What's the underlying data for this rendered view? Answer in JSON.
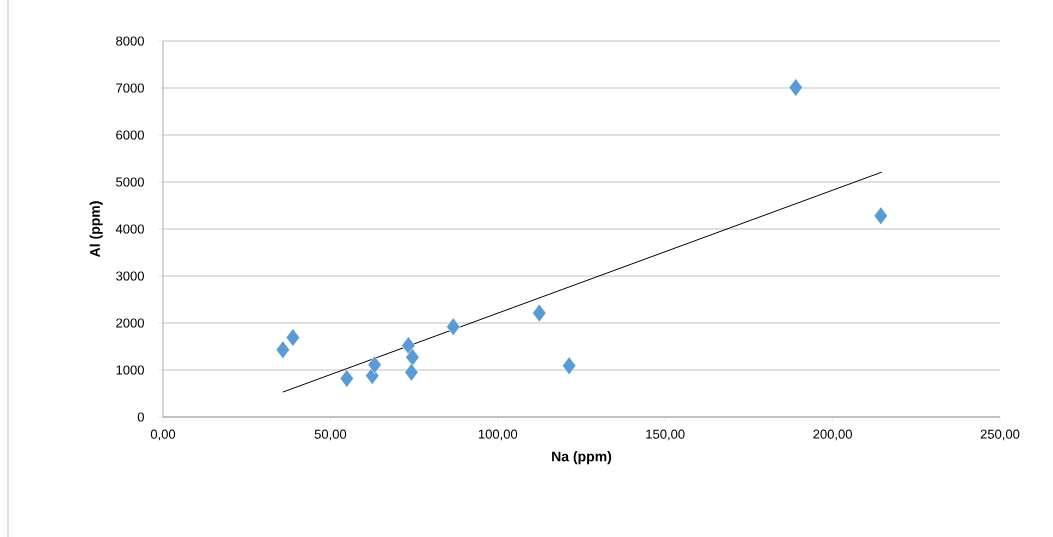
{
  "chart_data": {
    "type": "scatter",
    "xlabel": "Na (ppm)",
    "ylabel": "Al (ppm)",
    "xlim": [
      0,
      250
    ],
    "ylim": [
      0,
      8000
    ],
    "xticks": [
      {
        "value": 0,
        "label": "0,00"
      },
      {
        "value": 50,
        "label": "50,00"
      },
      {
        "value": 100,
        "label": "100,00"
      },
      {
        "value": 150,
        "label": "150,00"
      },
      {
        "value": 200,
        "label": "200,00"
      },
      {
        "value": 250,
        "label": "250,00"
      }
    ],
    "yticks": [
      0,
      1000,
      2000,
      3000,
      4000,
      5000,
      6000,
      7000,
      8000
    ],
    "grid": "y",
    "series": [
      {
        "color": "#5b9bd5",
        "marker": "diamond",
        "x": [
          35.8,
          38.8,
          54.9,
          62.5,
          63.2,
          73.3,
          74.5,
          74.2,
          86.7,
          112.4,
          121.3,
          189.0,
          214.4
        ],
        "values": [
          1430,
          1690,
          820,
          880,
          1110,
          1520,
          1270,
          950,
          1920,
          2210,
          1090,
          7010,
          4280
        ]
      },
      {
        "type": "line",
        "color": "#000000",
        "marker": "none",
        "line_style": "solid",
        "x": [
          35.8,
          214.7
        ],
        "values": [
          530,
          5210
        ]
      }
    ]
  }
}
